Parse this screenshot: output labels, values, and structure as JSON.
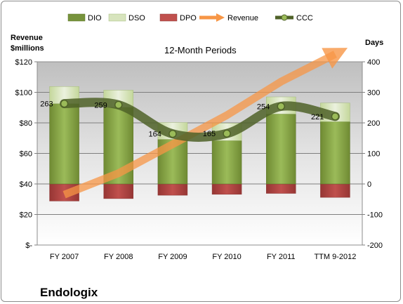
{
  "chart_data": {
    "type": "bar",
    "title": "12-Month Periods",
    "company": "Endologix",
    "categories": [
      "FY 2007",
      "FY 2008",
      "FY 2009",
      "FY 2010",
      "FY 2011",
      "TTM 9-2012"
    ],
    "series": [
      {
        "name": "DIO",
        "type": "stacked-bar",
        "axis": "right",
        "values": [
          263,
          251,
          146,
          142,
          229,
          204
        ],
        "color": "#77933c"
      },
      {
        "name": "DSO",
        "type": "stacked-bar",
        "axis": "right",
        "values": [
          56,
          56,
          55,
          57,
          56,
          61
        ],
        "color": "#d7e4bd"
      },
      {
        "name": "DPO",
        "type": "stacked-bar-negative",
        "axis": "right",
        "values": [
          -56,
          -48,
          -37,
          -34,
          -31,
          -44
        ],
        "color": "#c0504d"
      },
      {
        "name": "Revenue",
        "type": "arrow-line",
        "axis": "left",
        "values": [
          33,
          47,
          66,
          85,
          107,
          125
        ],
        "color": "#f79646"
      },
      {
        "name": "CCC",
        "type": "line",
        "axis": "right",
        "values": [
          263,
          259,
          164,
          165,
          254,
          221
        ],
        "color": "#4f6228"
      }
    ],
    "ccc_labels": [
      "263",
      "259",
      "164",
      "165",
      "254",
      "221"
    ],
    "y_left": {
      "label": "Revenue\n$millions",
      "ticks": [
        "$-",
        "$20",
        "$40",
        "$60",
        "$80",
        "$100",
        "$120"
      ],
      "min": 0,
      "max": 120
    },
    "y_right": {
      "label": "Days",
      "ticks": [
        "-200",
        "-100",
        "0",
        "100",
        "200",
        "300",
        "400"
      ],
      "min": -200,
      "max": 400
    },
    "legend": {
      "position": "top",
      "items": [
        "DIO",
        "DSO",
        "DPO",
        "Revenue",
        "CCC"
      ]
    },
    "grid": true
  }
}
